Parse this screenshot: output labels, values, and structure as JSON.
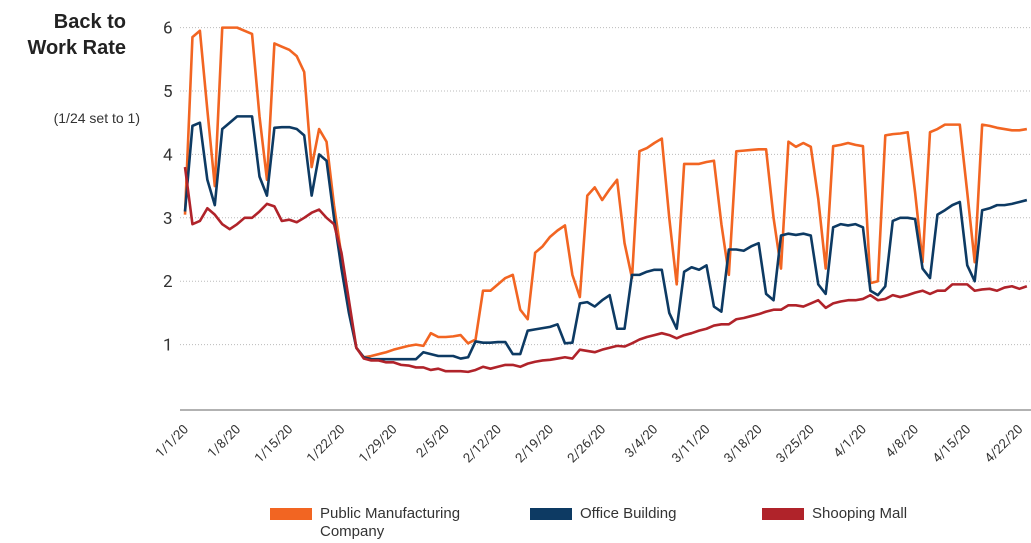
{
  "chart_data": {
    "type": "line",
    "title": "Back to Work Rate",
    "subtitle": "(1/24 set to 1)",
    "categories": [
      "1/1/20",
      null,
      null,
      null,
      null,
      null,
      null,
      "1/8/20",
      null,
      null,
      null,
      null,
      null,
      null,
      "1/15/20",
      null,
      null,
      null,
      null,
      null,
      null,
      "1/22/20",
      null,
      null,
      null,
      null,
      null,
      null,
      "1/29/20",
      null,
      null,
      null,
      null,
      null,
      null,
      "2/5/20",
      null,
      null,
      null,
      null,
      null,
      null,
      "2/12/20",
      null,
      null,
      null,
      null,
      null,
      null,
      "2/19/20",
      null,
      null,
      null,
      null,
      null,
      null,
      "2/26/20",
      null,
      null,
      null,
      null,
      null,
      null,
      "3/4/20",
      null,
      null,
      null,
      null,
      null,
      null,
      "3/11/20",
      null,
      null,
      null,
      null,
      null,
      null,
      "3/18/20",
      null,
      null,
      null,
      null,
      null,
      null,
      "3/25/20",
      null,
      null,
      null,
      null,
      null,
      null,
      "4/1/20",
      null,
      null,
      null,
      null,
      null,
      null,
      "4/8/20",
      null,
      null,
      null,
      null,
      null,
      null,
      "4/15/20",
      null,
      null,
      null,
      null,
      null,
      null,
      "4/22/20",
      null
    ],
    "series": [
      {
        "name": "Public Manufacturing Company",
        "color": "#f26522",
        "values": [
          3.05,
          5.85,
          5.95,
          4.7,
          3.5,
          6.0,
          6.0,
          6.0,
          5.95,
          5.9,
          4.6,
          3.6,
          5.75,
          5.7,
          5.65,
          5.55,
          5.3,
          3.8,
          4.4,
          4.2,
          3.2,
          2.4,
          1.6,
          0.95,
          0.8,
          0.82,
          0.85,
          0.88,
          0.92,
          0.95,
          0.98,
          1.0,
          0.98,
          1.18,
          1.12,
          1.12,
          1.13,
          1.15,
          1.02,
          1.08,
          1.85,
          1.85,
          1.95,
          2.05,
          2.1,
          1.55,
          1.4,
          2.45,
          2.55,
          2.7,
          2.8,
          2.88,
          2.1,
          1.75,
          3.35,
          3.48,
          3.28,
          3.45,
          3.6,
          2.6,
          2.05,
          4.05,
          4.1,
          4.18,
          4.25,
          3.0,
          1.95,
          3.85,
          3.85,
          3.85,
          3.88,
          3.9,
          2.9,
          2.1,
          4.05,
          4.06,
          4.07,
          4.08,
          4.08,
          3.0,
          2.2,
          4.2,
          4.12,
          4.18,
          4.12,
          3.3,
          2.2,
          4.13,
          4.15,
          4.18,
          4.15,
          4.13,
          1.97,
          2.0,
          4.3,
          4.32,
          4.33,
          4.35,
          3.4,
          2.3,
          4.35,
          4.4,
          4.47,
          4.47,
          4.47,
          3.4,
          2.3,
          4.47,
          4.45,
          4.42,
          4.4,
          4.38,
          4.38,
          4.4
        ]
      },
      {
        "name": "Office Building",
        "color": "#0d3a63",
        "values": [
          3.1,
          4.45,
          4.5,
          3.6,
          3.2,
          4.4,
          4.5,
          4.6,
          4.6,
          4.6,
          3.65,
          3.35,
          4.42,
          4.43,
          4.43,
          4.4,
          4.3,
          3.35,
          4.0,
          3.9,
          3.0,
          2.2,
          1.5,
          0.95,
          0.8,
          0.77,
          0.77,
          0.77,
          0.77,
          0.77,
          0.77,
          0.77,
          0.88,
          0.85,
          0.82,
          0.82,
          0.82,
          0.78,
          0.8,
          1.05,
          1.03,
          1.03,
          1.04,
          1.04,
          0.85,
          0.85,
          1.22,
          1.24,
          1.26,
          1.28,
          1.32,
          1.02,
          1.03,
          1.65,
          1.67,
          1.6,
          1.7,
          1.78,
          1.25,
          1.25,
          2.1,
          2.1,
          2.15,
          2.18,
          2.18,
          1.5,
          1.25,
          2.15,
          2.22,
          2.18,
          2.25,
          1.6,
          1.52,
          2.5,
          2.5,
          2.48,
          2.55,
          2.6,
          1.8,
          1.7,
          2.72,
          2.75,
          2.73,
          2.75,
          2.72,
          1.95,
          1.8,
          2.85,
          2.9,
          2.88,
          2.9,
          2.85,
          1.85,
          1.78,
          1.92,
          2.95,
          3.0,
          3.0,
          2.98,
          2.2,
          2.05,
          3.05,
          3.12,
          3.2,
          3.25,
          2.25,
          2.0,
          3.12,
          3.15,
          3.2,
          3.2,
          3.22,
          3.25,
          3.28
        ]
      },
      {
        "name": "Shooping Mall",
        "color": "#b0232a",
        "values": [
          3.8,
          2.9,
          2.95,
          3.15,
          3.05,
          2.9,
          2.82,
          2.9,
          3.0,
          3.0,
          3.1,
          3.22,
          3.18,
          2.95,
          2.97,
          2.93,
          3.0,
          3.08,
          3.13,
          3.0,
          2.9,
          2.45,
          1.7,
          0.95,
          0.78,
          0.75,
          0.75,
          0.72,
          0.72,
          0.68,
          0.67,
          0.64,
          0.64,
          0.6,
          0.62,
          0.58,
          0.58,
          0.58,
          0.57,
          0.6,
          0.65,
          0.62,
          0.65,
          0.68,
          0.68,
          0.65,
          0.7,
          0.73,
          0.75,
          0.76,
          0.78,
          0.8,
          0.78,
          0.92,
          0.9,
          0.88,
          0.92,
          0.95,
          0.98,
          0.97,
          1.02,
          1.08,
          1.12,
          1.15,
          1.18,
          1.15,
          1.1,
          1.15,
          1.18,
          1.22,
          1.25,
          1.3,
          1.32,
          1.32,
          1.4,
          1.42,
          1.45,
          1.48,
          1.52,
          1.55,
          1.55,
          1.62,
          1.62,
          1.6,
          1.65,
          1.7,
          1.58,
          1.65,
          1.68,
          1.7,
          1.7,
          1.72,
          1.78,
          1.7,
          1.72,
          1.78,
          1.75,
          1.78,
          1.82,
          1.85,
          1.8,
          1.85,
          1.85,
          1.95,
          1.95,
          1.95,
          1.85,
          1.87,
          1.88,
          1.85,
          1.9,
          1.92,
          1.88,
          1.92
        ]
      }
    ],
    "ylim": [
      0,
      6.3
    ],
    "yticks": [
      1,
      2,
      3,
      4,
      5,
      6
    ],
    "grid": true
  }
}
